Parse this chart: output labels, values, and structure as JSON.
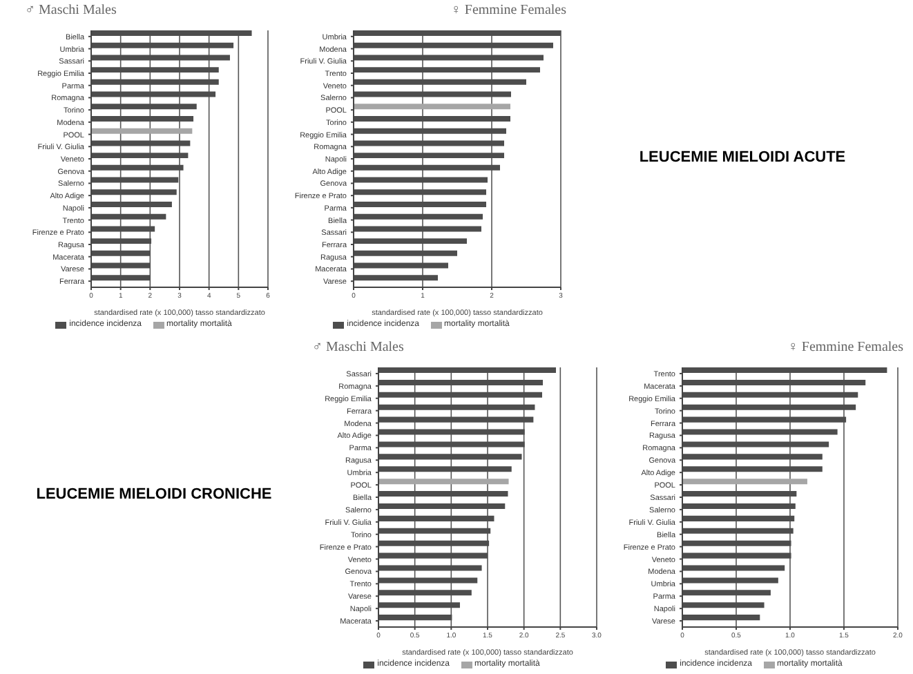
{
  "chart_data": [
    {
      "type": "bar",
      "orientation": "horizontal",
      "title": "♂ Maschi Males",
      "xlabel": "standardised rate (x 100,000)  tasso standardizzato",
      "categories": [
        "Biella",
        "Umbria",
        "Sassari",
        "Reggio Emilia",
        "Parma",
        "Romagna",
        "Torino",
        "Modena",
        "POOL",
        "Friuli V. Giulia",
        "Veneto",
        "Genova",
        "Salerno",
        "Alto Adige",
        "Napoli",
        "Trento",
        "Firenze e Prato",
        "Ragusa",
        "Macerata",
        "Varese",
        "Ferrara"
      ],
      "series": [
        {
          "name": "incidence incidenza",
          "color": "#4d4d4d",
          "colors": [
            "#4d4d4d",
            "#4d4d4d",
            "#4d4d4d",
            "#4d4d4d",
            "#4d4d4d",
            "#4d4d4d",
            "#4d4d4d",
            "#4d4d4d",
            "#a6a6a6",
            "#4d4d4d",
            "#4d4d4d",
            "#4d4d4d",
            "#4d4d4d",
            "#4d4d4d",
            "#4d4d4d",
            "#4d4d4d",
            "#4d4d4d",
            "#4d4d4d",
            "#4d4d4d",
            "#4d4d4d",
            "#4d4d4d"
          ],
          "values": [
            5.45,
            4.83,
            4.71,
            4.33,
            4.33,
            4.22,
            3.58,
            3.47,
            3.43,
            3.36,
            3.29,
            3.13,
            2.96,
            2.9,
            2.74,
            2.54,
            2.16,
            2.04,
            2.0,
            2.0,
            2.0
          ]
        },
        {
          "name": "mortality mortalità",
          "color": "#a6a6a6",
          "values": [
            null,
            null,
            null,
            null,
            null,
            null,
            null,
            null,
            null,
            null,
            null,
            null,
            null,
            null,
            null,
            null,
            null,
            null,
            null,
            null,
            null
          ]
        }
      ],
      "xlim": [
        0,
        6
      ],
      "xticks": [
        0,
        1,
        2,
        3,
        4,
        5,
        6
      ],
      "grid": "x",
      "legend": "bottom"
    },
    {
      "type": "bar",
      "orientation": "horizontal",
      "title": "♀ Femmine Females",
      "xlabel": "standardised rate (x 100,000)  tasso standardizzato",
      "annotations": [
        "LEUCEMIE MIELOIDI ACUTE"
      ],
      "categories": [
        "Umbria",
        "Modena",
        "Friuli V. Giulia",
        "Trento",
        "Veneto",
        "Salerno",
        "POOL",
        "Torino",
        "Reggio Emilia",
        "Romagna",
        "Napoli",
        "Alto Adige",
        "Genova",
        "Firenze e Prato",
        "Parma",
        "Biella",
        "Sassari",
        "Ferrara",
        "Ragusa",
        "Macerata",
        "Varese"
      ],
      "series": [
        {
          "name": "incidence incidenza",
          "color": "#4d4d4d",
          "colors": [
            "#4d4d4d",
            "#4d4d4d",
            "#4d4d4d",
            "#4d4d4d",
            "#4d4d4d",
            "#4d4d4d",
            "#a6a6a6",
            "#4d4d4d",
            "#4d4d4d",
            "#4d4d4d",
            "#4d4d4d",
            "#4d4d4d",
            "#4d4d4d",
            "#4d4d4d",
            "#4d4d4d",
            "#4d4d4d",
            "#4d4d4d",
            "#4d4d4d",
            "#4d4d4d",
            "#4d4d4d",
            "#4d4d4d"
          ],
          "values": [
            3.0,
            2.89,
            2.75,
            2.7,
            2.5,
            2.28,
            2.27,
            2.27,
            2.21,
            2.18,
            2.18,
            2.12,
            1.94,
            1.92,
            1.92,
            1.87,
            1.85,
            1.64,
            1.5,
            1.37,
            1.22
          ]
        },
        {
          "name": "mortality mortalità",
          "color": "#a6a6a6",
          "values": [
            null,
            null,
            null,
            null,
            null,
            null,
            null,
            null,
            null,
            null,
            null,
            null,
            null,
            null,
            null,
            null,
            null,
            null,
            null,
            null,
            null
          ]
        }
      ],
      "xlim": [
        0,
        3
      ],
      "xticks": [
        0,
        1,
        2,
        3
      ],
      "grid": "x",
      "legend": "bottom"
    },
    {
      "type": "bar",
      "orientation": "horizontal",
      "title": "♂ Maschi Males",
      "xlabel": "standardised rate (x 100,000)  tasso standardizzato",
      "annotations": [
        "LEUCEMIE MIELOIDI CRONICHE"
      ],
      "categories": [
        "Sassari",
        "Romagna",
        "Reggio Emilia",
        "Ferrara",
        "Modena",
        "Alto Adige",
        "Parma",
        "Ragusa",
        "Umbria",
        "POOL",
        "Biella",
        "Salerno",
        "Friuli V. Giulia",
        "Torino",
        "Firenze e Prato",
        "Veneto",
        "Genova",
        "Trento",
        "Varese",
        "Napoli",
        "Macerata"
      ],
      "series": [
        {
          "name": "incidence incidenza",
          "color": "#4d4d4d",
          "colors": [
            "#4d4d4d",
            "#4d4d4d",
            "#4d4d4d",
            "#4d4d4d",
            "#4d4d4d",
            "#4d4d4d",
            "#4d4d4d",
            "#4d4d4d",
            "#4d4d4d",
            "#a6a6a6",
            "#4d4d4d",
            "#4d4d4d",
            "#4d4d4d",
            "#4d4d4d",
            "#4d4d4d",
            "#4d4d4d",
            "#4d4d4d",
            "#4d4d4d",
            "#4d4d4d",
            "#4d4d4d",
            "#4d4d4d"
          ],
          "values": [
            2.44,
            2.26,
            2.25,
            2.15,
            2.13,
            2.01,
            2.01,
            1.97,
            1.83,
            1.79,
            1.78,
            1.74,
            1.59,
            1.54,
            1.52,
            1.5,
            1.42,
            1.36,
            1.28,
            1.12,
            1.01
          ]
        },
        {
          "name": "mortality mortalità",
          "color": "#a6a6a6",
          "values": [
            null,
            null,
            null,
            null,
            null,
            null,
            null,
            null,
            null,
            null,
            null,
            null,
            null,
            null,
            null,
            null,
            null,
            null,
            null,
            null,
            null
          ]
        }
      ],
      "xlim": [
        0,
        3
      ],
      "xticks": [
        0,
        {
          "value": 0.5,
          "label": "0.5"
        },
        {
          "value": 1,
          "label": "1.0"
        },
        {
          "value": 1.5,
          "label": "1.5"
        },
        {
          "value": 2,
          "label": "2.0"
        },
        {
          "value": 2.5,
          "label": "2.5"
        },
        {
          "value": 3,
          "label": "3.0"
        }
      ],
      "grid": "x",
      "legend": "bottom"
    },
    {
      "type": "bar",
      "orientation": "horizontal",
      "title": "♀ Femmine Females",
      "xlabel": "standardised rate (x 100,000)  tasso standardizzato",
      "categories": [
        "Trento",
        "Macerata",
        "Reggio Emilia",
        "Torino",
        "Ferrara",
        "Ragusa",
        "Romagna",
        "Genova",
        "Alto Adige",
        "POOL",
        "Sassari",
        "Salerno",
        "Friuli V. Giulia",
        "Biella",
        "Firenze e Prato",
        "Veneto",
        "Modena",
        "Umbria",
        "Parma",
        "Napoli",
        "Varese"
      ],
      "series": [
        {
          "name": "incidence incidenza",
          "color": "#4d4d4d",
          "colors": [
            "#4d4d4d",
            "#4d4d4d",
            "#4d4d4d",
            "#4d4d4d",
            "#4d4d4d",
            "#4d4d4d",
            "#4d4d4d",
            "#4d4d4d",
            "#4d4d4d",
            "#a6a6a6",
            "#4d4d4d",
            "#4d4d4d",
            "#4d4d4d",
            "#4d4d4d",
            "#4d4d4d",
            "#4d4d4d",
            "#4d4d4d",
            "#4d4d4d",
            "#4d4d4d",
            "#4d4d4d",
            "#4d4d4d"
          ],
          "values": [
            1.9,
            1.7,
            1.63,
            1.61,
            1.52,
            1.44,
            1.36,
            1.3,
            1.3,
            1.16,
            1.06,
            1.05,
            1.04,
            1.03,
            1.01,
            1.01,
            0.95,
            0.89,
            0.82,
            0.76,
            0.72
          ]
        },
        {
          "name": "mortality mortalità",
          "color": "#a6a6a6",
          "values": [
            null,
            null,
            null,
            null,
            null,
            null,
            null,
            null,
            null,
            null,
            null,
            null,
            null,
            null,
            null,
            null,
            null,
            null,
            null,
            null,
            null
          ]
        }
      ],
      "xlim": [
        0,
        2
      ],
      "xticks": [
        0,
        {
          "value": 0.5,
          "label": "0.5"
        },
        {
          "value": 1,
          "label": "1.0"
        },
        {
          "value": 1.5,
          "label": "1.5"
        },
        {
          "value": 2,
          "label": "2.0"
        }
      ],
      "grid": "x",
      "legend": "bottom"
    }
  ]
}
